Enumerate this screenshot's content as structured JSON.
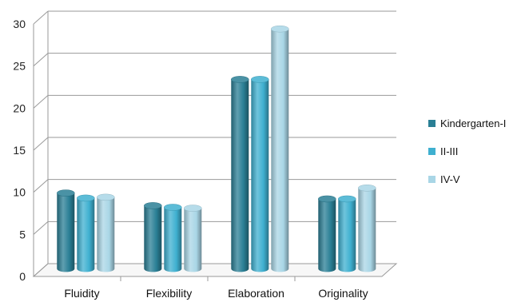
{
  "chart_data": {
    "type": "bar",
    "style": "3d-cylinder",
    "categories": [
      "Fluidity",
      "Flexibility",
      "Elaboration",
      "Originality"
    ],
    "series": [
      {
        "name": "Kindergarten-I",
        "color": "#2a7f95",
        "values": [
          9,
          7.5,
          22.5,
          8.3
        ]
      },
      {
        "name": "II-III",
        "color": "#3fb0d0",
        "values": [
          8.4,
          7.3,
          22.5,
          8.3
        ]
      },
      {
        "name": "IV-V",
        "color": "#a9d6e6",
        "values": [
          8.5,
          7.2,
          28.5,
          9.6
        ]
      }
    ],
    "yticks": [
      "0",
      "5",
      "10",
      "15",
      "20",
      "25",
      "30"
    ],
    "ylim": [
      0,
      30
    ],
    "grid": true,
    "legend_position": "right",
    "title": "",
    "xlabel": "",
    "ylabel": ""
  }
}
